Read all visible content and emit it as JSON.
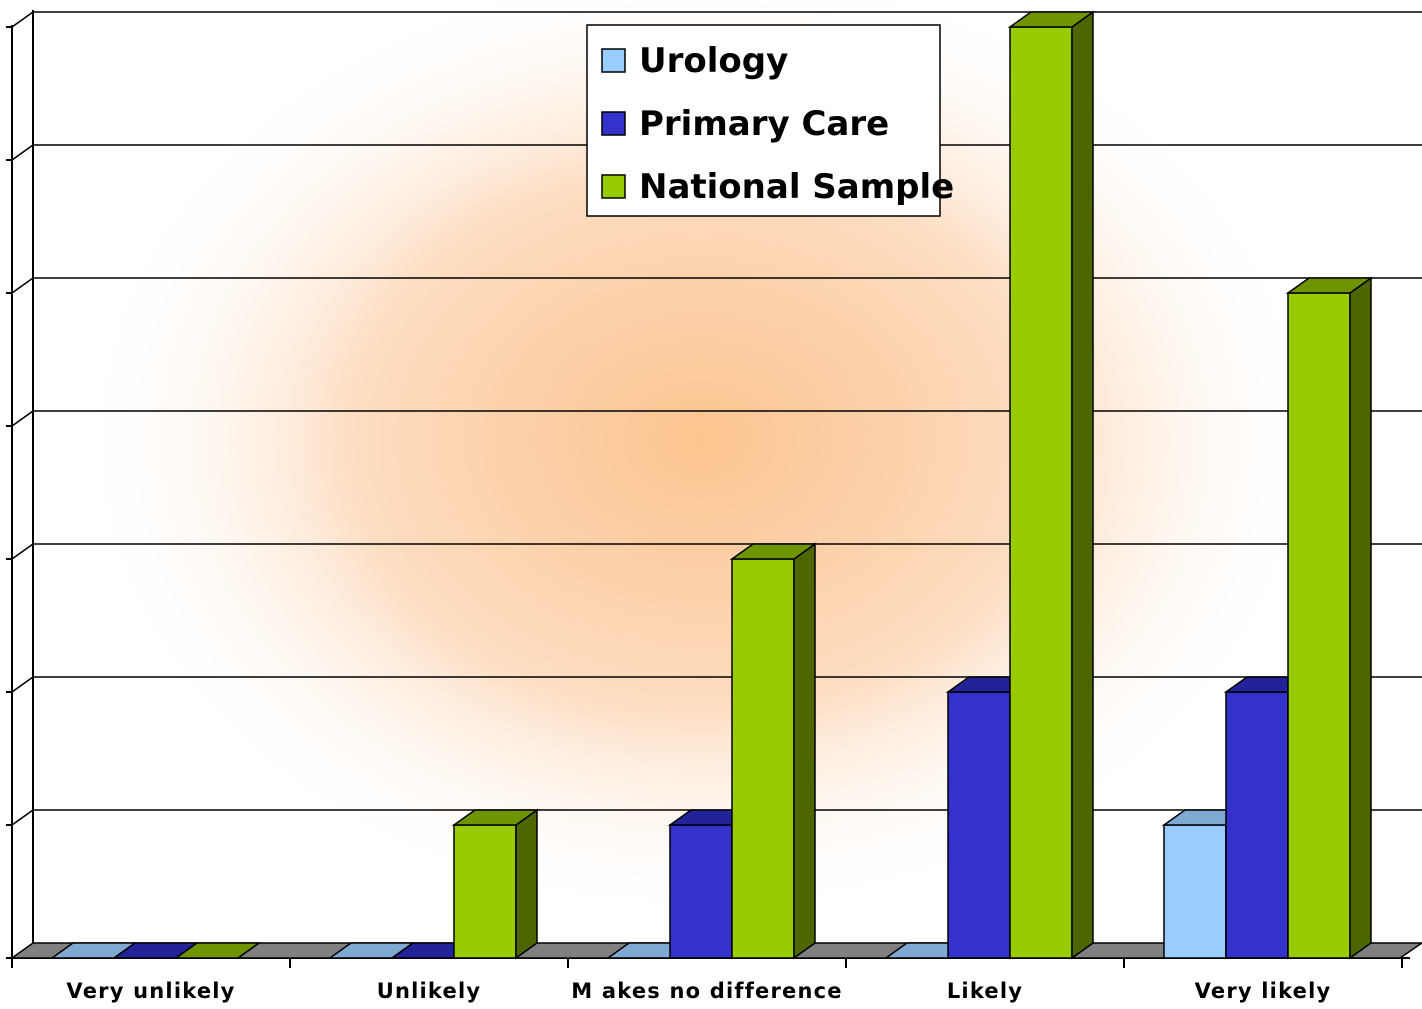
{
  "chart_data": {
    "type": "bar",
    "style": "3d-clustered-column",
    "categories": [
      "Very unlikely",
      "Unlikely",
      "M akes no difference",
      "Likely",
      "Very likely"
    ],
    "series": [
      {
        "name": "Urology",
        "values": [
          0,
          0,
          0,
          0,
          1
        ],
        "color": "#99CCFF",
        "side_color": "#6A93BE",
        "top_color": "#7FA9D2"
      },
      {
        "name": "Primary Care",
        "values": [
          0,
          0,
          1,
          2,
          2
        ],
        "color": "#3333CC",
        "side_color": "#1A1A80",
        "top_color": "#232399"
      },
      {
        "name": "National Sample",
        "values": [
          0,
          1,
          3,
          7,
          5
        ],
        "color": "#99CC00",
        "side_color": "#4D6600",
        "top_color": "#6E9400"
      }
    ],
    "ylim": [
      0,
      7
    ],
    "grid": true,
    "y_tick_labels_shown": false,
    "legend": {
      "position": "top-center"
    },
    "colors": {
      "floor": "#808080",
      "background_glow": "#FCC490",
      "grid": "#000000"
    }
  }
}
